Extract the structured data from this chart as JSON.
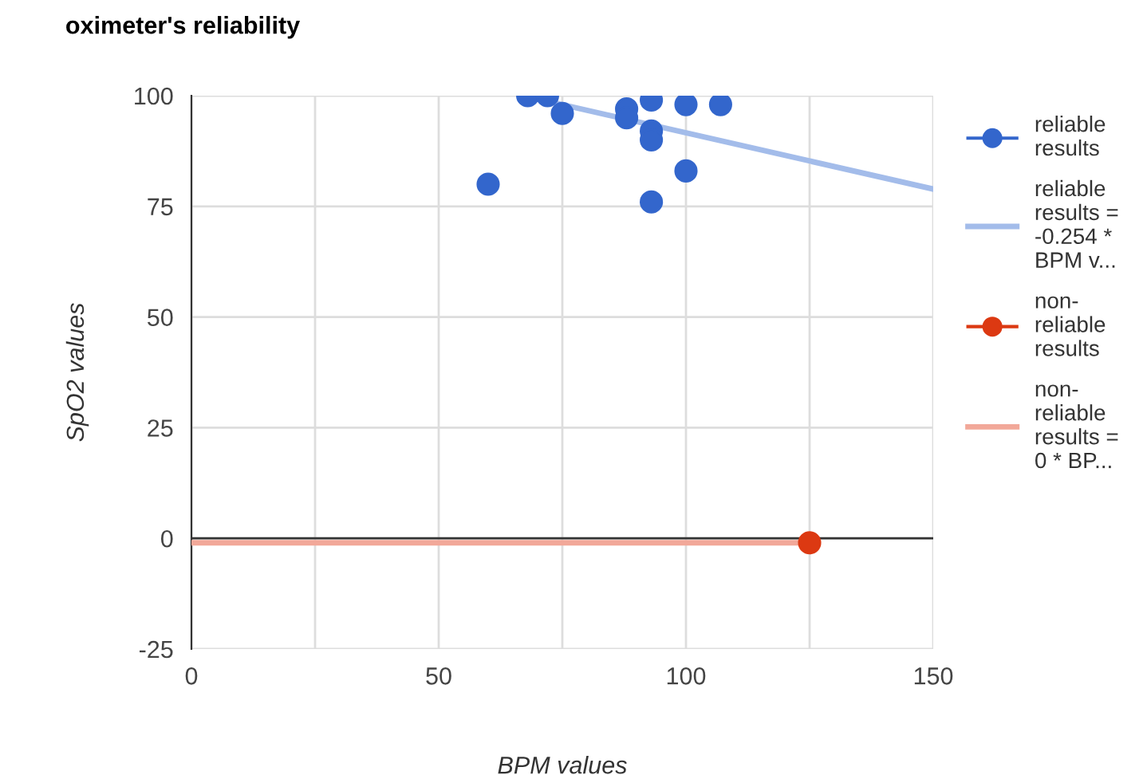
{
  "chart_data": {
    "type": "scatter",
    "title": "oximeter's reliability",
    "xlabel": "BPM values",
    "ylabel": "SpO2 values",
    "xlim": [
      0,
      150
    ],
    "ylim": [
      -25,
      100
    ],
    "xticks": [
      0,
      {
        "value": 25,
        "label": null
      },
      50,
      {
        "value": 75,
        "label": null
      },
      100,
      {
        "value": 125,
        "label": null
      },
      150
    ],
    "yticks": [
      -25,
      0,
      25,
      50,
      75,
      100
    ],
    "grid": true,
    "legend": "right",
    "marker": "circle",
    "ref_lines": [
      {
        "axis": "y",
        "value": 0,
        "color": "#333333"
      }
    ],
    "series": [
      {
        "name": "reliable results",
        "color": "#3366cc",
        "x": [
          60,
          68,
          72,
          75,
          88,
          88,
          93,
          93,
          93,
          93,
          100,
          100,
          107
        ],
        "values": [
          80,
          100,
          100,
          96,
          97,
          95,
          99,
          92,
          90,
          76,
          98,
          83,
          98
        ]
      },
      {
        "name": "reliable results = -0.254 * BPM v...",
        "color": "#a3bcea",
        "type": "line",
        "marker": "none",
        "x": [
          67,
          150
        ],
        "values": [
          100,
          78.9
        ]
      },
      {
        "name": "non-reliable results",
        "color": "#dc3912",
        "x": [
          125
        ],
        "values": [
          -1
        ]
      },
      {
        "name": "non-reliable results = 0 * BP...",
        "color": "#f2a899",
        "type": "line",
        "marker": "none",
        "x": [
          0,
          125
        ],
        "values": [
          -1,
          -1
        ]
      }
    ]
  }
}
